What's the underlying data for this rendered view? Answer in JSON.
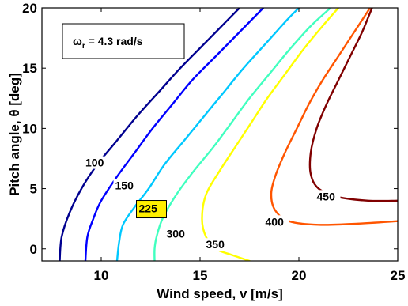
{
  "chart_data": {
    "type": "contour",
    "xlabel": "Wind speed, v [m/s]",
    "ylabel": "Pitch angle, θ [deg]",
    "xlim": [
      7,
      25
    ],
    "ylim": [
      -1,
      20
    ],
    "xticks": [
      10,
      15,
      20,
      25
    ],
    "yticks": [
      0,
      5,
      10,
      15,
      20
    ],
    "grid": false,
    "annotation": {
      "symbol": "ω",
      "subscript": "r",
      "text": " = 4.3 rad/s"
    },
    "highlighted_level": 225,
    "highlight_color": "#ffee00",
    "levels": [
      {
        "value": 100,
        "label": "100",
        "color": "#00008f",
        "points": [
          [
            7.9,
            -1
          ],
          [
            8.0,
            1
          ],
          [
            8.4,
            3
          ],
          [
            9.0,
            5
          ],
          [
            9.8,
            7
          ],
          [
            10.8,
            9
          ],
          [
            11.8,
            11
          ],
          [
            12.9,
            13
          ],
          [
            14.0,
            15
          ],
          [
            15.2,
            17
          ],
          [
            16.4,
            19
          ],
          [
            17.0,
            20
          ]
        ],
        "label_at": [
          9.2,
          6.9
        ]
      },
      {
        "value": 150,
        "label": "150",
        "color": "#0000ff",
        "points": [
          [
            9.2,
            -1
          ],
          [
            9.3,
            1
          ],
          [
            9.6,
            2.5
          ],
          [
            10.0,
            4
          ],
          [
            10.8,
            6
          ],
          [
            11.7,
            8
          ],
          [
            12.6,
            10
          ],
          [
            13.6,
            12
          ],
          [
            14.6,
            14
          ],
          [
            15.8,
            16
          ],
          [
            17.0,
            18
          ],
          [
            18.2,
            20
          ]
        ],
        "label_at": [
          10.7,
          5.0
        ]
      },
      {
        "value": 225,
        "label": "225",
        "color": "#00c8ff",
        "points": [
          [
            10.8,
            -1
          ],
          [
            10.9,
            0.5
          ],
          [
            11.1,
            2
          ],
          [
            11.7,
            3.5
          ],
          [
            12.4,
            5
          ],
          [
            13.2,
            7
          ],
          [
            14.2,
            9
          ],
          [
            15.2,
            11
          ],
          [
            16.2,
            13
          ],
          [
            17.2,
            15
          ],
          [
            18.3,
            17
          ],
          [
            19.4,
            19
          ],
          [
            20.0,
            20
          ]
        ],
        "label_at": [
          11.9,
          3.1
        ]
      },
      {
        "value": 300,
        "label": "300",
        "color": "#40ffbf",
        "points": [
          [
            12.7,
            -1
          ],
          [
            12.7,
            0
          ],
          [
            12.8,
            1
          ],
          [
            13.1,
            2.5
          ],
          [
            13.8,
            4.5
          ],
          [
            14.7,
            6.5
          ],
          [
            15.7,
            8.5
          ],
          [
            16.6,
            10.5
          ],
          [
            17.5,
            12.5
          ],
          [
            18.5,
            14.5
          ],
          [
            19.5,
            16.5
          ],
          [
            20.6,
            18.5
          ],
          [
            21.6,
            20
          ]
        ],
        "label_at": [
          13.3,
          1.0
        ]
      },
      {
        "value": 350,
        "label": "350",
        "color": "#ffff00",
        "points": [
          [
            17.5,
            -1
          ],
          [
            16.6,
            -0.5
          ],
          [
            15.8,
            0
          ],
          [
            15.3,
            1
          ],
          [
            15.1,
            2.5
          ],
          [
            15.3,
            4.5
          ],
          [
            16.0,
            6.5
          ],
          [
            16.8,
            8.5
          ],
          [
            17.6,
            10.5
          ],
          [
            18.4,
            12.5
          ],
          [
            19.3,
            14.5
          ],
          [
            20.2,
            16.5
          ],
          [
            21.2,
            18.5
          ],
          [
            22.0,
            20
          ]
        ],
        "label_at": [
          15.3,
          0.1
        ]
      },
      {
        "value": 400,
        "label": "400",
        "color": "#ff5500",
        "points": [
          [
            25,
            2.3
          ],
          [
            23.0,
            2.1
          ],
          [
            21.0,
            2.0
          ],
          [
            19.5,
            2.3
          ],
          [
            18.8,
            3.2
          ],
          [
            18.6,
            4.5
          ],
          [
            18.8,
            6
          ],
          [
            19.3,
            8
          ],
          [
            19.9,
            10
          ],
          [
            20.5,
            12
          ],
          [
            21.2,
            14
          ],
          [
            22.0,
            16
          ],
          [
            22.8,
            18
          ],
          [
            23.6,
            20
          ]
        ],
        "label_at": [
          18.3,
          2.0
        ]
      },
      {
        "value": 450,
        "label": "450",
        "color": "#800000",
        "points": [
          [
            25,
            4.0
          ],
          [
            23.5,
            4.0
          ],
          [
            22.0,
            4.3
          ],
          [
            21.0,
            5.0
          ],
          [
            20.6,
            6.2
          ],
          [
            20.6,
            8
          ],
          [
            20.9,
            10
          ],
          [
            21.4,
            12
          ],
          [
            22.0,
            14
          ],
          [
            22.6,
            16
          ],
          [
            23.2,
            18
          ],
          [
            23.7,
            20
          ]
        ],
        "label_at": [
          20.9,
          4.1
        ]
      }
    ]
  }
}
